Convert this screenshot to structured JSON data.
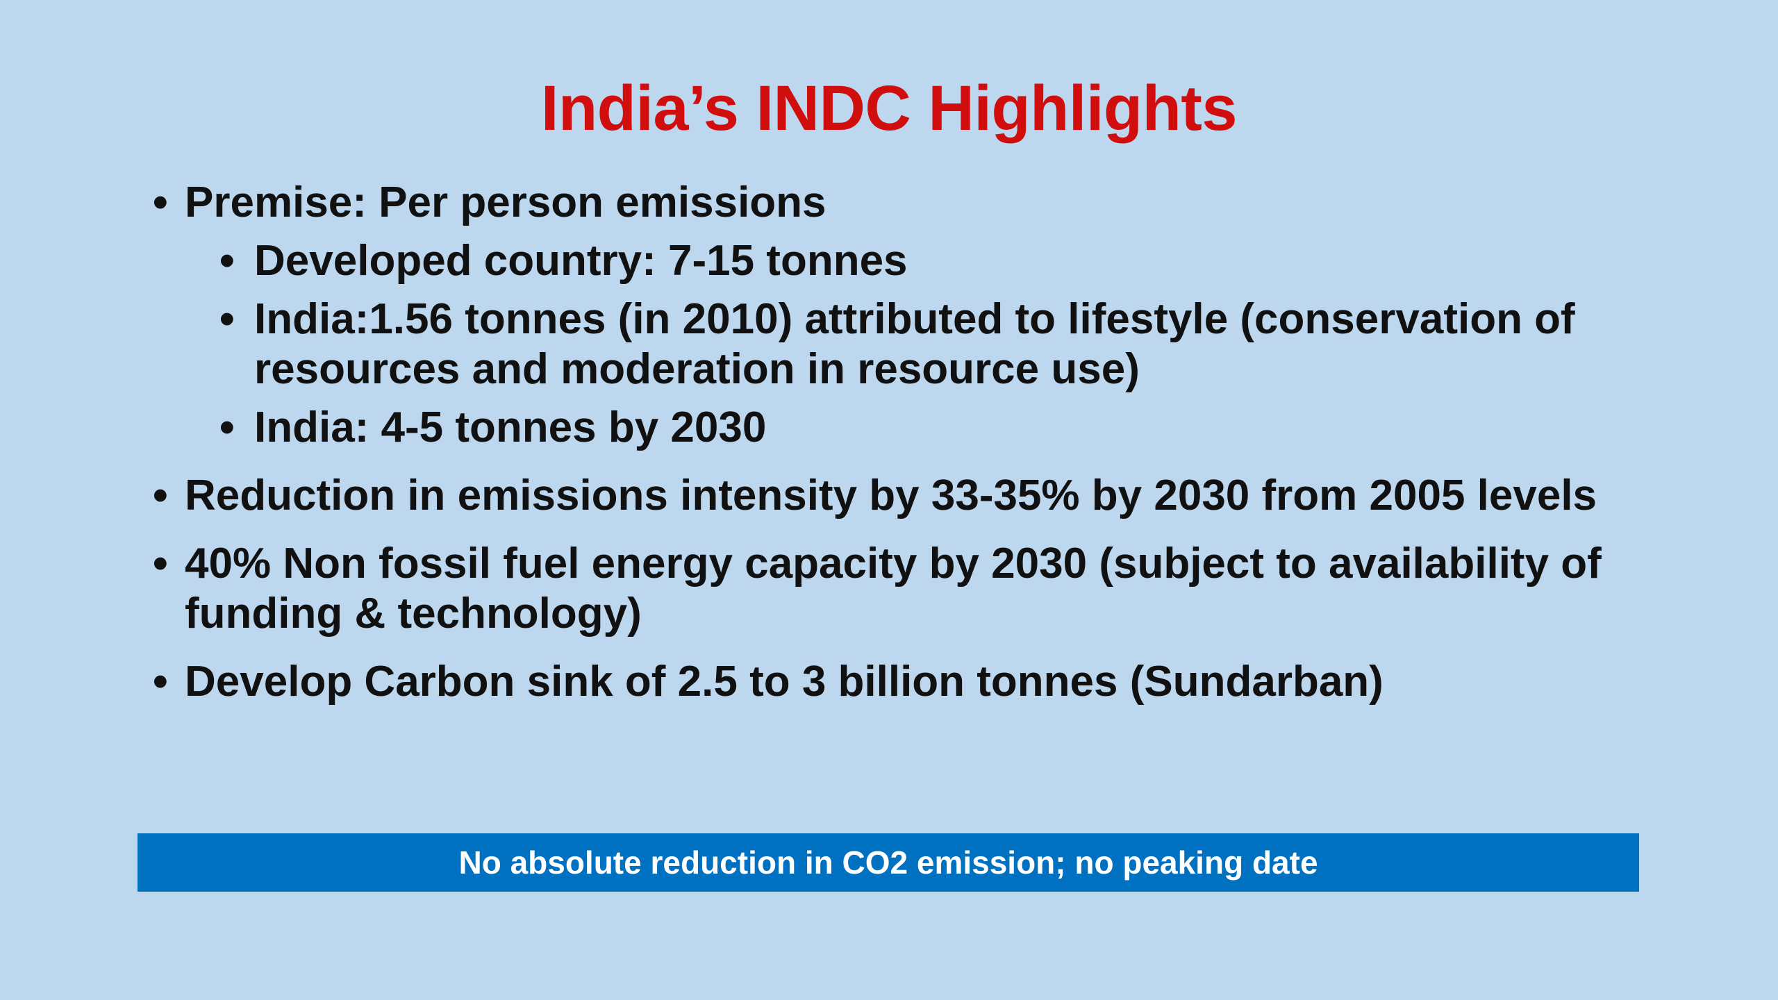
{
  "slide": {
    "title": "India’s INDC Highlights",
    "bullet_glyph": "•",
    "bullets": [
      {
        "text": "Premise: Per person emissions",
        "sub": [
          "Developed country: 7-15 tonnes",
          "India:1.56 tonnes (in 2010) attributed to lifestyle (conservation of resources and moderation in resource use)",
          "India: 4-5 tonnes by 2030"
        ]
      },
      {
        "text": "Reduction in emissions intensity by 33-35% by 2030 from 2005 levels"
      },
      {
        "text": "40% Non fossil fuel energy capacity by 2030 (subject to availability of funding & technology)"
      },
      {
        "text": "Develop Carbon sink of 2.5 to 3 billion tonnes (Sundarban)"
      }
    ],
    "banner": "No absolute reduction in CO2 emission; no peaking date"
  },
  "colors": {
    "background": "#BDD7EE",
    "title": "#D00E0E",
    "banner_bg": "#0070C0",
    "banner_text": "#FFFFFF",
    "body_text": "#111111"
  }
}
